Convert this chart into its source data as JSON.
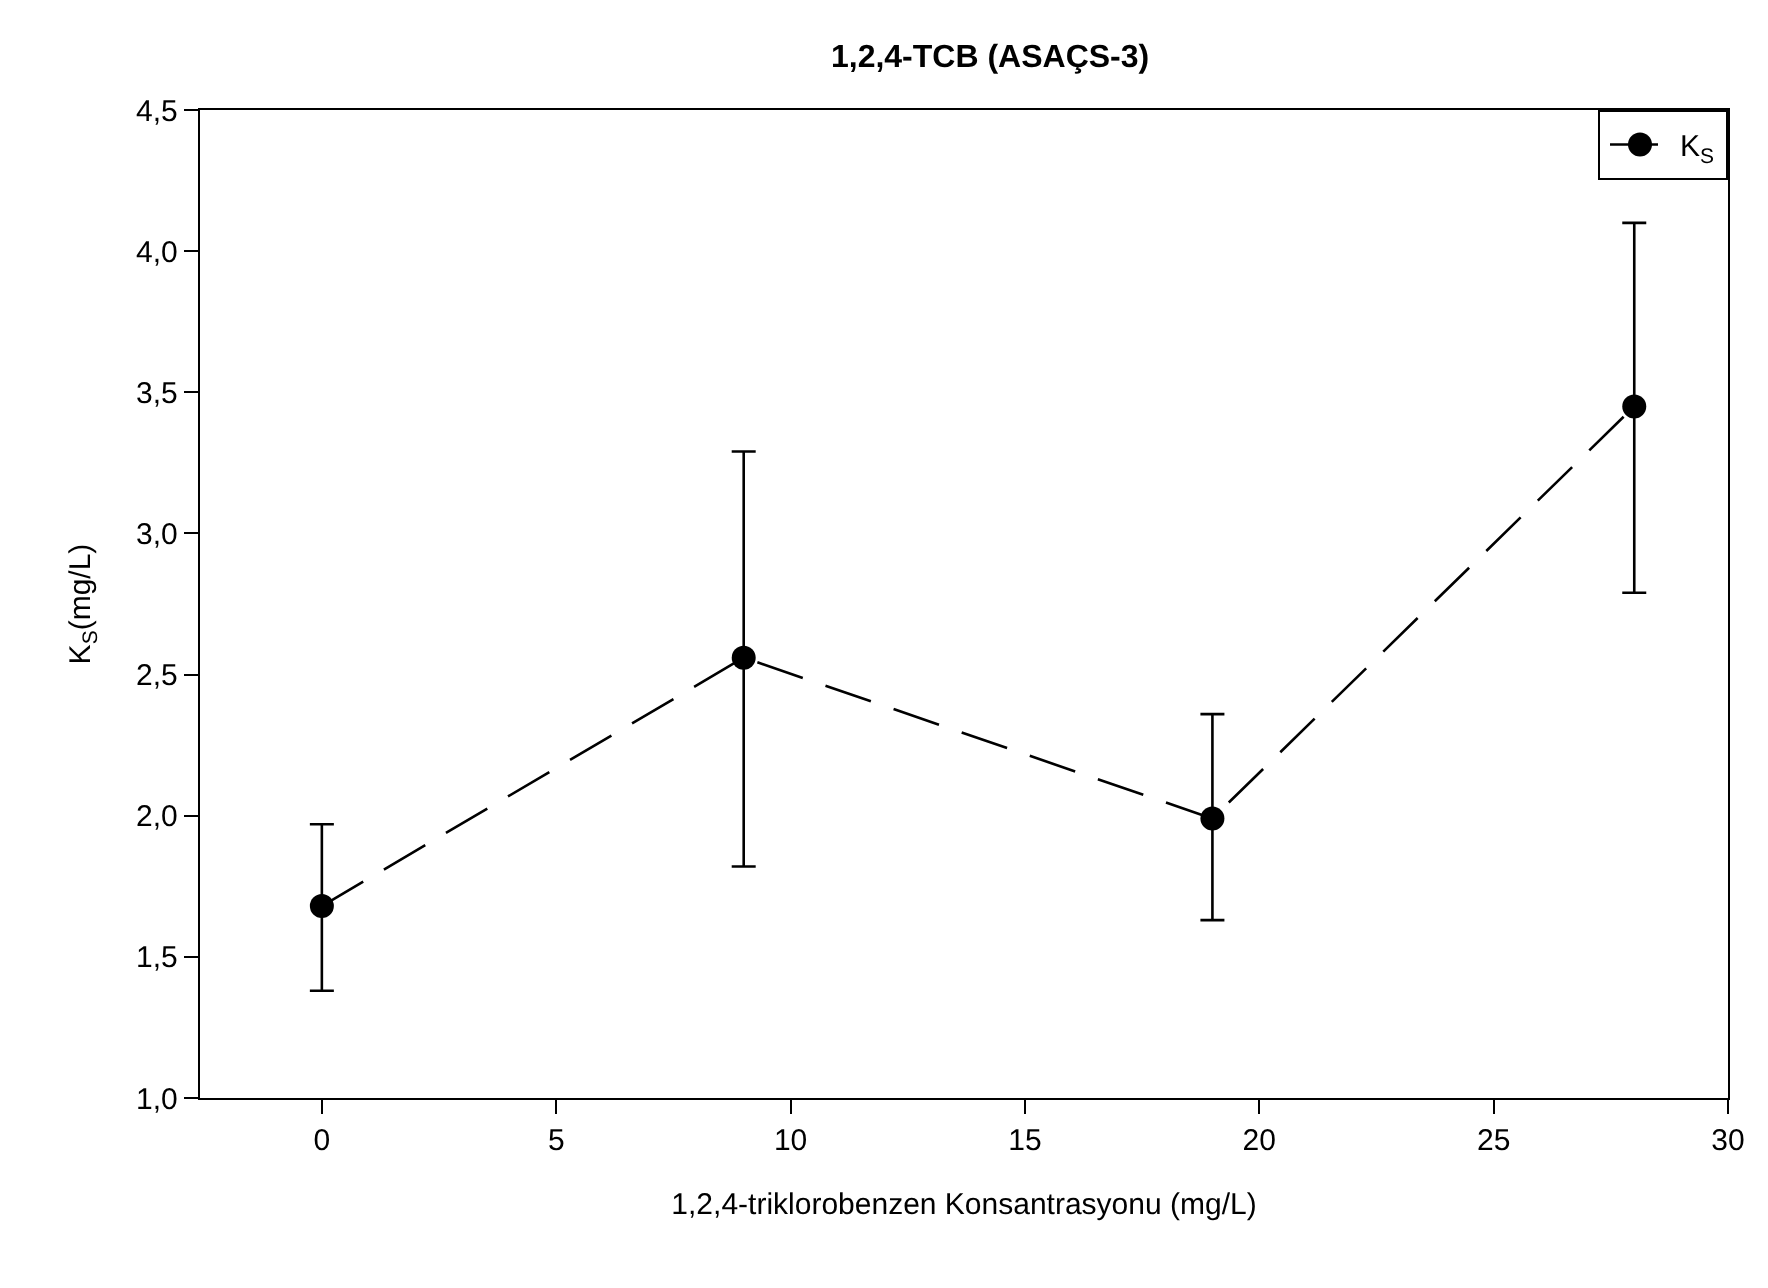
{
  "chart_data": {
    "type": "line",
    "title": "1,2,4-TCB (ASAÇS-3)",
    "xlabel": "1,2,4-triklorobenzen Konsantrasyonu (mg/L)",
    "ylabel": "K$_{S}$(mg/L)",
    "x": [
      0,
      9,
      19,
      28
    ],
    "series": [
      {
        "name": "K$_{S}$",
        "color": "#000000",
        "values": [
          1.68,
          2.56,
          1.99,
          3.45
        ],
        "errors": [
          [
            1.38,
            1.97
          ],
          [
            1.82,
            3.29
          ],
          [
            1.63,
            2.36
          ],
          [
            2.79,
            4.1
          ]
        ]
      }
    ],
    "xlim": [
      -2.6,
      30
    ],
    "xticks": [
      0,
      5,
      10,
      15,
      20,
      25,
      30
    ],
    "ylim": [
      1.0,
      4.5
    ],
    "yticks": [
      {
        "value": 1.0,
        "label": "1,0"
      },
      {
        "value": 1.5,
        "label": "1,5"
      },
      {
        "value": 2.0,
        "label": "2,0"
      },
      {
        "value": 2.5,
        "label": "2,5"
      },
      {
        "value": 3.0,
        "label": "3,0"
      },
      {
        "value": 3.5,
        "label": "3,5"
      },
      {
        "value": 4.0,
        "label": "4,0"
      },
      {
        "value": 4.5,
        "label": "4,5"
      }
    ],
    "grid": false,
    "legend": "top right",
    "marker": "circle",
    "line_style": "dashed"
  }
}
